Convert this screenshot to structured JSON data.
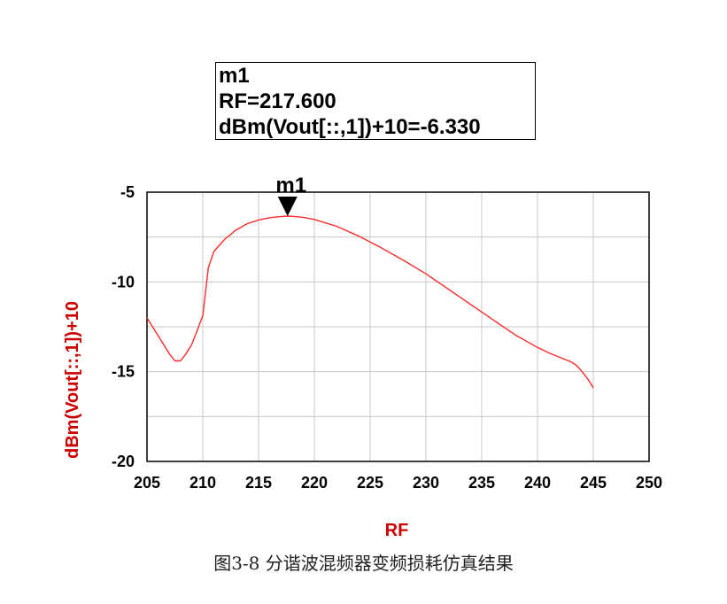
{
  "marker_box": {
    "name": "m1",
    "x_text": "RF=217.600",
    "y_text": "dBm(Vout[::,1])+10=-6.330"
  },
  "caption": "图3-8 分谐波混频器变频损耗仿真结果",
  "colors": {
    "curve": "#ff2a2a",
    "axis_label": "#cc0000",
    "grid": "#c8c8c8",
    "frame": "#000000"
  },
  "chart_data": {
    "type": "line",
    "xlabel": "RF",
    "ylabel": "dBm(Vout[::,1])+10",
    "xlim": [
      205,
      250
    ],
    "ylim": [
      -20,
      -5
    ],
    "x_ticks": [
      205,
      210,
      215,
      220,
      225,
      230,
      235,
      240,
      245,
      250
    ],
    "y_ticks": [
      -5,
      -10,
      -15,
      -20
    ],
    "grid": true,
    "marker": {
      "label": "m1",
      "x": 217.6,
      "y": -6.33
    },
    "series": [
      {
        "x": [
          205,
          206,
          207,
          207.5,
          208,
          208.5,
          209,
          209.5,
          209.8,
          210,
          210.5,
          211,
          212,
          213,
          214,
          215,
          216,
          217,
          217.6,
          218,
          219,
          220,
          222,
          224,
          226,
          228,
          230,
          232,
          234,
          236,
          238,
          240,
          241,
          242,
          243,
          243.5,
          244,
          244.5,
          245
        ],
        "y": [
          -12.0,
          -13.0,
          -14.0,
          -14.4,
          -14.4,
          -14.0,
          -13.5,
          -12.7,
          -12.2,
          -11.9,
          -9.2,
          -8.3,
          -7.6,
          -7.1,
          -6.75,
          -6.55,
          -6.42,
          -6.36,
          -6.33,
          -6.34,
          -6.4,
          -6.52,
          -6.9,
          -7.45,
          -8.1,
          -8.8,
          -9.55,
          -10.4,
          -11.25,
          -12.1,
          -12.95,
          -13.65,
          -13.95,
          -14.2,
          -14.45,
          -14.65,
          -15.0,
          -15.4,
          -15.9
        ]
      }
    ]
  }
}
